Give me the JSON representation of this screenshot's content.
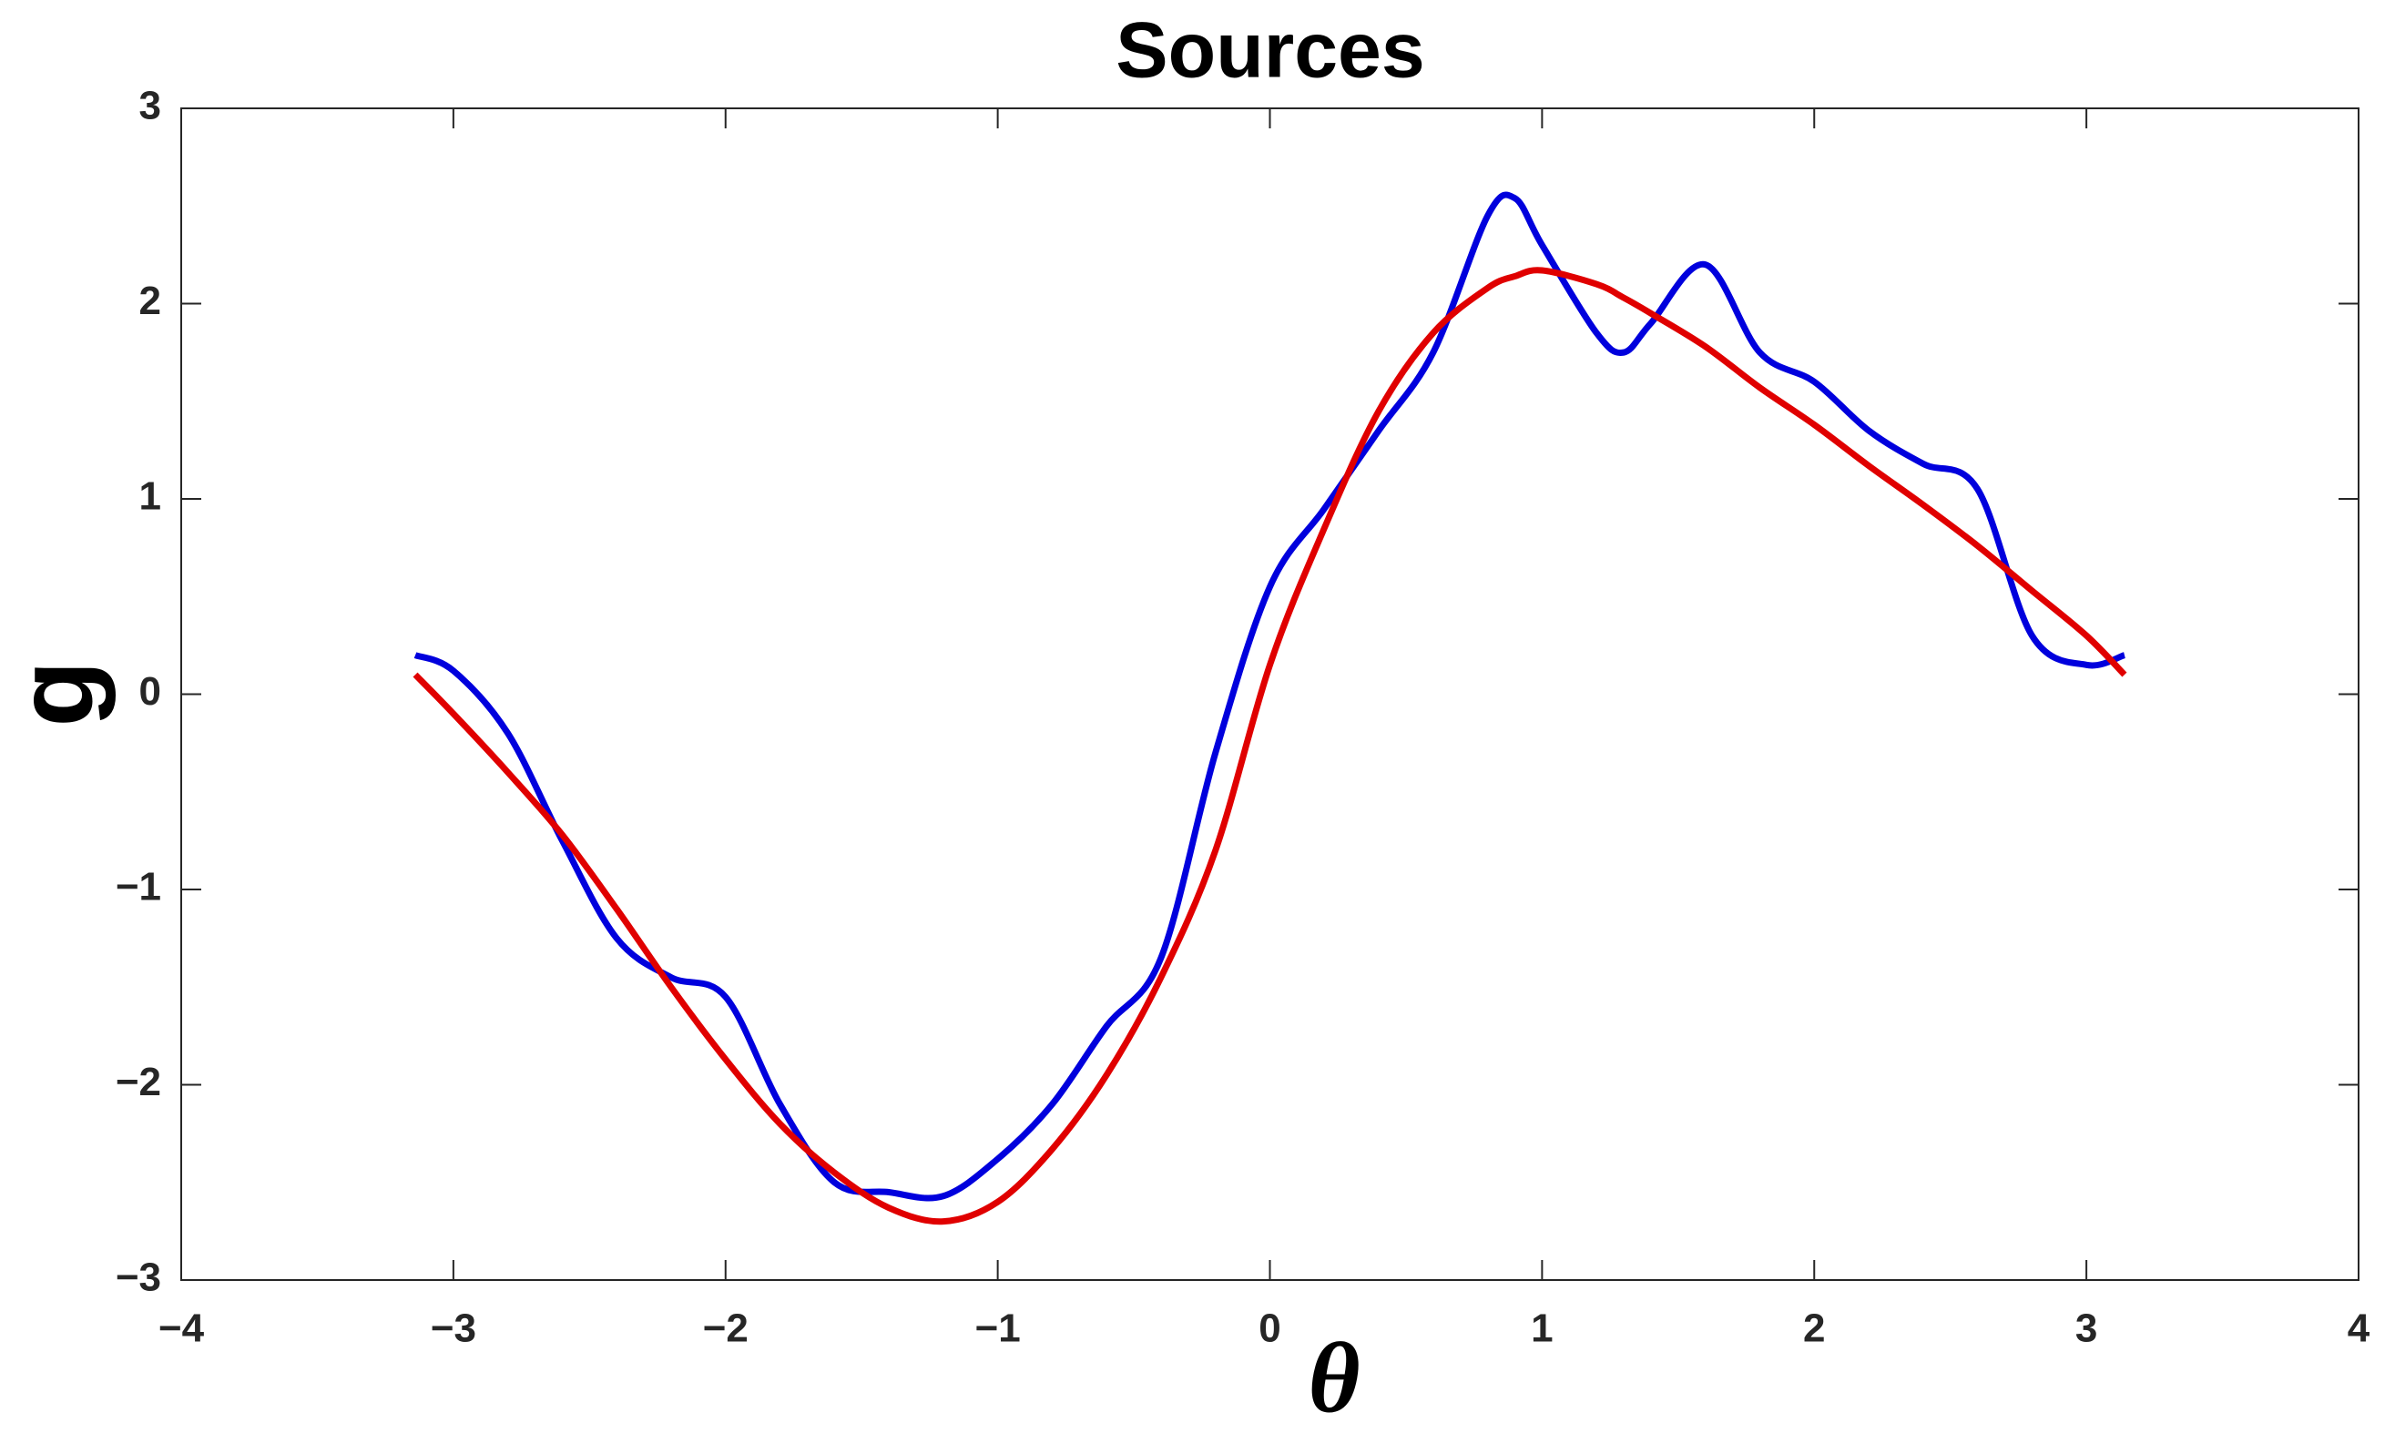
{
  "chart_data": {
    "type": "line",
    "title": "Sources",
    "x_label": "θ",
    "y_label": "g",
    "x": [
      -3.14,
      -3.0,
      -2.8,
      -2.6,
      -2.4,
      -2.2,
      -2.0,
      -1.8,
      -1.6,
      -1.4,
      -1.2,
      -1.0,
      -0.8,
      -0.6,
      -0.4,
      -0.2,
      0,
      0.2,
      0.4,
      0.6,
      0.8,
      0.9,
      1.0,
      1.2,
      1.3,
      1.4,
      1.6,
      1.8,
      2.0,
      2.2,
      2.4,
      2.6,
      2.8,
      3.0,
      3.14
    ],
    "series": [
      {
        "color": "#0000dd",
        "values": [
          0.2,
          0.12,
          -0.2,
          -0.75,
          -1.25,
          -1.45,
          -1.55,
          -2.1,
          -2.5,
          -2.55,
          -2.57,
          -2.38,
          -2.1,
          -1.7,
          -1.35,
          -0.3,
          0.55,
          0.95,
          1.35,
          1.75,
          2.45,
          2.54,
          2.3,
          1.85,
          1.75,
          1.9,
          2.2,
          1.75,
          1.6,
          1.35,
          1.18,
          1.05,
          0.3,
          0.15,
          0.2
        ]
      },
      {
        "color": "#e00000",
        "values": [
          0.1,
          -0.1,
          -0.4,
          -0.72,
          -1.1,
          -1.5,
          -1.87,
          -2.2,
          -2.45,
          -2.63,
          -2.7,
          -2.6,
          -2.33,
          -1.95,
          -1.45,
          -0.8,
          0.15,
          0.85,
          1.45,
          1.85,
          2.08,
          2.14,
          2.17,
          2.1,
          2.03,
          1.95,
          1.78,
          1.57,
          1.38,
          1.17,
          0.97,
          0.76,
          0.53,
          0.3,
          0.1
        ]
      }
    ],
    "xlim": [
      -4,
      4
    ],
    "xticks": [
      {
        "value": -4,
        "label": "−4"
      },
      {
        "value": -3,
        "label": "−3"
      },
      {
        "value": -2,
        "label": "−2"
      },
      {
        "value": -1,
        "label": "−1"
      },
      0,
      1,
      2,
      3,
      4
    ],
    "ylim": [
      -3,
      3
    ],
    "yticks": [
      {
        "value": -3,
        "label": "−3"
      },
      {
        "value": -2,
        "label": "−2"
      },
      {
        "value": -1,
        "label": "−1"
      },
      0,
      1,
      2,
      3
    ],
    "grid": false
  }
}
